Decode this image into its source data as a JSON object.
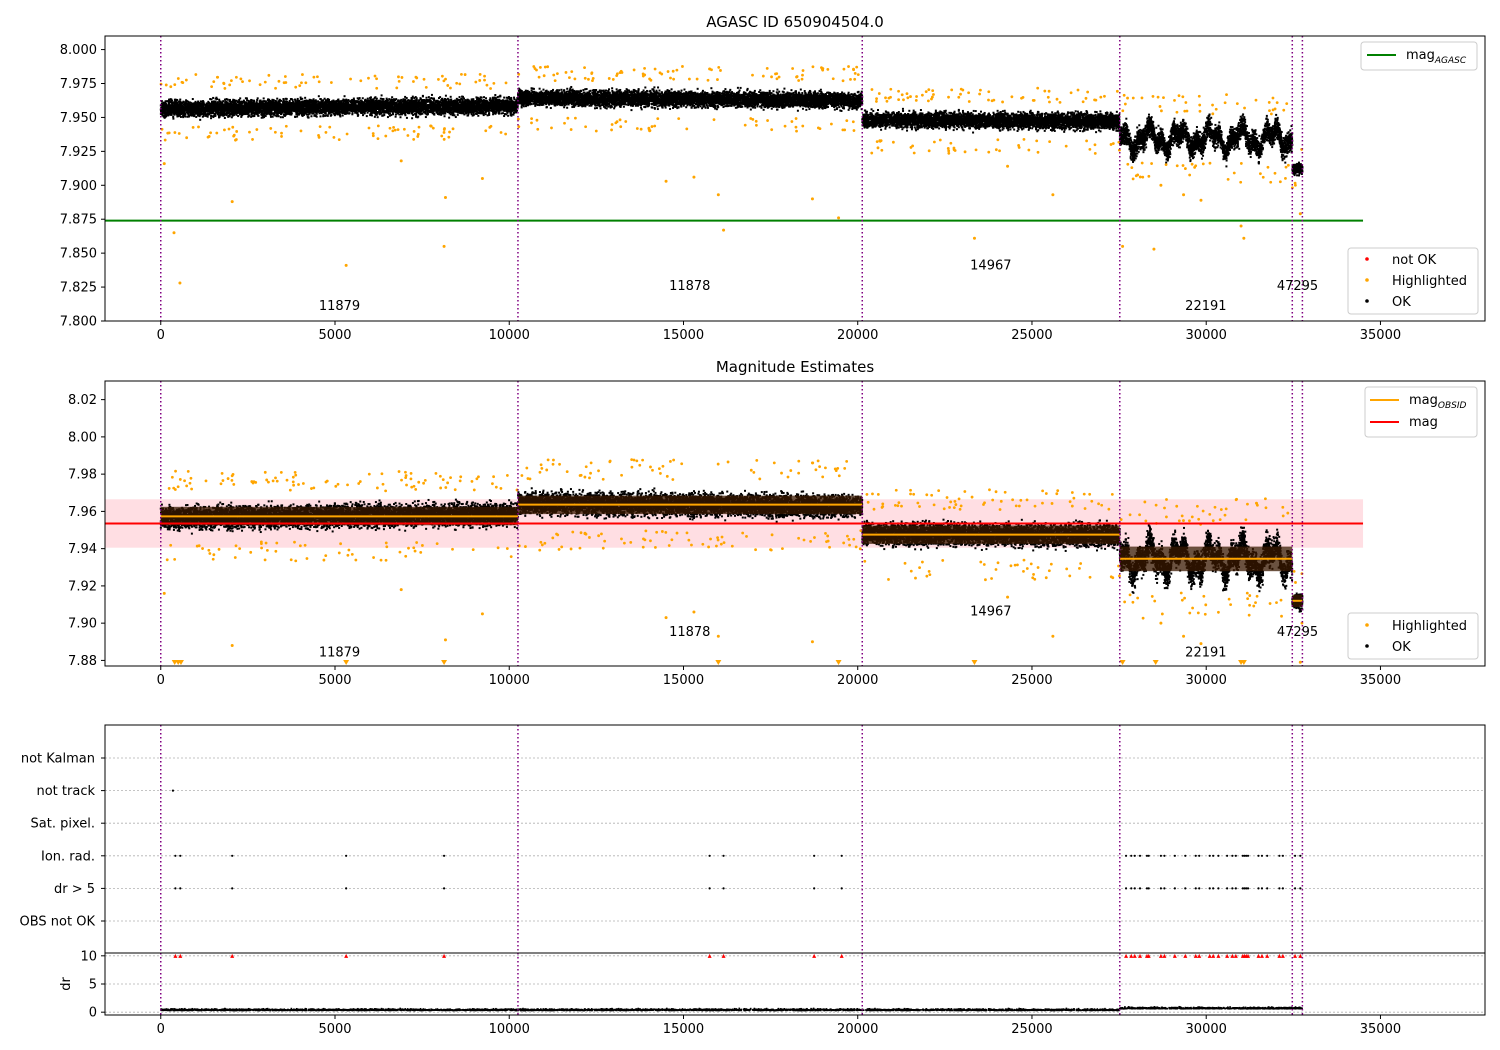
{
  "chart_data": [
    {
      "type": "scatter",
      "title": "AGASC ID 650904504.0",
      "xlim": [
        -1600,
        38000
      ],
      "ylim": [
        7.8,
        8.01
      ],
      "xticks": [
        "0",
        "5000",
        "10000",
        "15000",
        "20000",
        "25000",
        "30000",
        "35000"
      ],
      "yticks": [
        "7.800",
        "7.825",
        "7.850",
        "7.875",
        "7.900",
        "7.925",
        "7.950",
        "7.975",
        "8.000"
      ],
      "obsid_boundaries": [
        0,
        10250,
        20130,
        27520,
        32470,
        32760
      ],
      "obsid_labels": [
        {
          "text": "11879",
          "x": 5130,
          "y": 7.808
        },
        {
          "text": "11878",
          "x": 15180,
          "y": 7.823
        },
        {
          "text": "14967",
          "x": 23820,
          "y": 7.838
        },
        {
          "text": "22191",
          "x": 29990,
          "y": 7.808
        },
        {
          "text": "47295",
          "x": 32620,
          "y": 7.823
        }
      ],
      "mag_agasc": 7.874,
      "mag_agasc_xrange": [
        -1600,
        34500
      ],
      "segments": [
        {
          "x0": 0,
          "x1": 10250,
          "mean": 7.9575,
          "spread": 0.009,
          "slope": 0.002
        },
        {
          "x0": 10250,
          "x1": 20130,
          "mean": 7.9635,
          "spread": 0.009,
          "slope": -0.002
        },
        {
          "x0": 20130,
          "x1": 27520,
          "mean": 7.9475,
          "spread": 0.009,
          "slope": -0.001
        },
        {
          "x0": 27520,
          "x1": 32470,
          "mean": 7.9345,
          "spread": 0.012,
          "slope": 0
        },
        {
          "x0": 32470,
          "x1": 32760,
          "mean": 7.912,
          "spread": 0.006,
          "slope": 0
        }
      ],
      "highlighted_outliers": [
        {
          "x": 100,
          "y": 7.916
        },
        {
          "x": 380,
          "y": 7.865
        },
        {
          "x": 550,
          "y": 7.828
        },
        {
          "x": 2050,
          "y": 7.888
        },
        {
          "x": 5320,
          "y": 7.841
        },
        {
          "x": 6900,
          "y": 7.918
        },
        {
          "x": 8130,
          "y": 7.855
        },
        {
          "x": 8170,
          "y": 7.891
        },
        {
          "x": 9230,
          "y": 7.905
        },
        {
          "x": 14500,
          "y": 7.903
        },
        {
          "x": 15300,
          "y": 7.906
        },
        {
          "x": 16000,
          "y": 7.893
        },
        {
          "x": 16150,
          "y": 7.867
        },
        {
          "x": 18700,
          "y": 7.89
        },
        {
          "x": 19450,
          "y": 7.876
        },
        {
          "x": 23350,
          "y": 7.861
        },
        {
          "x": 24300,
          "y": 7.914
        },
        {
          "x": 25600,
          "y": 7.893
        },
        {
          "x": 27600,
          "y": 7.855
        },
        {
          "x": 28500,
          "y": 7.853
        },
        {
          "x": 28700,
          "y": 7.9
        },
        {
          "x": 29350,
          "y": 7.893
        },
        {
          "x": 29850,
          "y": 7.889
        },
        {
          "x": 31000,
          "y": 7.87
        },
        {
          "x": 31080,
          "y": 7.861
        },
        {
          "x": 32700,
          "y": 7.879
        }
      ],
      "legend_upper": {
        "position": "upper right",
        "entries": [
          {
            "label": "mag",
            "subscript": "AGASC",
            "color": "#008000"
          }
        ]
      },
      "legend_lower": {
        "position": "lower right",
        "entries": [
          {
            "label": "not OK",
            "color": "#ff0000"
          },
          {
            "label": "Highlighted",
            "color": "#ffa500"
          },
          {
            "label": "OK",
            "color": "#000000"
          }
        ]
      }
    },
    {
      "type": "scatter",
      "title": "Magnitude Estimates",
      "xlim": [
        -1600,
        38000
      ],
      "ylim": [
        7.877,
        8.03
      ],
      "xticks": [
        "0",
        "5000",
        "10000",
        "15000",
        "20000",
        "25000",
        "30000",
        "35000"
      ],
      "yticks": [
        "7.88",
        "7.90",
        "7.92",
        "7.94",
        "7.96",
        "7.98",
        "8.00",
        "8.02"
      ],
      "obsid_labels": [
        {
          "text": "11879",
          "x": 5130,
          "y": 7.882
        },
        {
          "text": "11878",
          "x": 15180,
          "y": 7.893
        },
        {
          "text": "14967",
          "x": 23820,
          "y": 7.904
        },
        {
          "text": "22191",
          "x": 29990,
          "y": 7.882
        },
        {
          "text": "47295",
          "x": 32620,
          "y": 7.893
        }
      ],
      "mag": 7.9535,
      "mag_band": [
        7.9405,
        7.9665
      ],
      "mag_xrange": [
        -1600,
        34500
      ],
      "mag_obsid": [
        {
          "x0": 0,
          "x1": 10250,
          "value": 7.9573
        },
        {
          "x0": 10250,
          "x1": 20130,
          "value": 7.9636
        },
        {
          "x0": 20130,
          "x1": 27520,
          "value": 7.9475
        },
        {
          "x0": 27520,
          "x1": 32470,
          "value": 7.9346
        },
        {
          "x0": 32470,
          "x1": 32760,
          "value": 7.912
        }
      ],
      "clipped_markers_x": [
        400,
        500,
        580,
        5320,
        8130,
        16000,
        19450,
        23350,
        27600,
        28550,
        31000,
        31080
      ],
      "legend_upper": {
        "position": "upper right",
        "entries": [
          {
            "label": "mag",
            "subscript": "OBSID",
            "color": "#ffa500"
          },
          {
            "label": "mag",
            "color": "#ff0000"
          }
        ]
      },
      "legend_lower": {
        "position": "lower right",
        "entries": [
          {
            "label": "Highlighted",
            "color": "#ffa500"
          },
          {
            "label": "OK",
            "color": "#000000"
          }
        ]
      }
    },
    {
      "type": "scatter",
      "title": "",
      "xlim": [
        -1600,
        38000
      ],
      "xticks": [
        "0",
        "5000",
        "10000",
        "15000",
        "20000",
        "25000",
        "30000",
        "35000"
      ],
      "flag_categories": [
        "not Kalman",
        "not track",
        "Sat. pixel.",
        "Ion. rad.",
        "dr > 5",
        "OBS not OK"
      ],
      "flags": {
        "not track": [
          350
        ],
        "Ion. rad.": [
          420,
          560,
          2050,
          5320,
          8130,
          15750,
          16150,
          18750,
          19540,
          27700,
          27850,
          27950,
          28100,
          28300,
          28350,
          28700,
          28800,
          29100,
          29400,
          29700,
          29800,
          30100,
          30200,
          30350,
          30600,
          30750,
          30850,
          31050,
          31100,
          31150,
          31200,
          31500,
          31600,
          31750,
          32100,
          32200,
          32550,
          32700
        ],
        "dr > 5": [
          420,
          560,
          2050,
          5320,
          8130,
          15750,
          16150,
          18750,
          19540,
          27700,
          27850,
          27950,
          28100,
          28300,
          28350,
          28700,
          28800,
          29100,
          29400,
          29700,
          29800,
          30100,
          30200,
          30350,
          30600,
          30750,
          30850,
          31050,
          31100,
          31150,
          31200,
          31500,
          31600,
          31750,
          32100,
          32200,
          32550,
          32700
        ]
      },
      "dr": {
        "ylabel": "dr",
        "yticks": [
          "0",
          "5",
          "10"
        ],
        "ylim": [
          -0.5,
          10.5
        ],
        "clip_value": 10,
        "baseline": 0.3,
        "baseline_later": 0.6,
        "marker_color": "#ff0000"
      }
    }
  ],
  "colors": {
    "ok": "#000000",
    "highlighted": "#ffa500",
    "not_ok": "#ff0000",
    "mag_agasc": "#008000",
    "mag": "#ff0000",
    "mag_obsid": "#ffa500",
    "boundary": "#800080",
    "mag_band": "#ffb6c1",
    "grid": "#b0b0b0"
  }
}
